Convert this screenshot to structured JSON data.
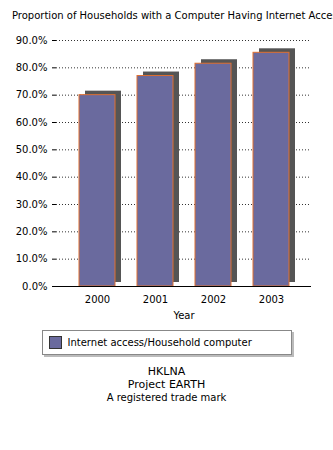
{
  "chart_data": {
    "type": "bar",
    "title": "Proportion of Households with a Computer Having Internet Access",
    "x_label": "Year",
    "categories": [
      "2000",
      "2001",
      "2002",
      "2003"
    ],
    "series": [
      {
        "name": "Internet access/Household computer",
        "color": "#6a6a9e",
        "values": [
          70.0,
          77.0,
          81.5,
          85.5
        ]
      }
    ],
    "ylim": [
      0,
      90
    ],
    "yticks": [
      {
        "value": 0,
        "label": "0.0%"
      },
      {
        "value": 10,
        "label": "10.0%"
      },
      {
        "value": 20,
        "label": "20.0%"
      },
      {
        "value": 30,
        "label": "30.0%"
      },
      {
        "value": 40,
        "label": "40.0%"
      },
      {
        "value": 50,
        "label": "50.0%"
      },
      {
        "value": 60,
        "label": "60.0%"
      },
      {
        "value": 70,
        "label": "70.0%"
      },
      {
        "value": 80,
        "label": "80.0%"
      },
      {
        "value": 90,
        "label": "90.0%"
      }
    ],
    "grid": true,
    "legend": "bottom",
    "annotations": [
      "HKLNA",
      "Project EARTH",
      "A registered trade mark"
    ]
  }
}
